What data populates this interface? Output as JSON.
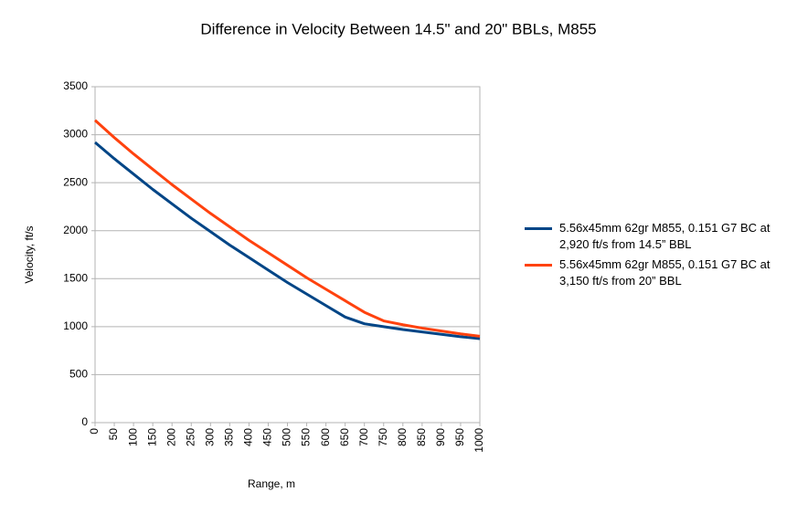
{
  "chart_data": {
    "type": "line",
    "title": "Difference in Velocity Between 14.5\" and 20\" BBLs, M855",
    "x_label": "Range, m",
    "y_label": "Velocity, ft/s",
    "x": [
      0,
      50,
      100,
      150,
      200,
      250,
      300,
      350,
      400,
      450,
      500,
      550,
      600,
      650,
      700,
      750,
      800,
      850,
      900,
      950,
      1000
    ],
    "xlim": [
      0,
      1000
    ],
    "xticks": [
      0,
      50,
      100,
      150,
      200,
      250,
      300,
      350,
      400,
      450,
      500,
      550,
      600,
      650,
      700,
      750,
      800,
      850,
      900,
      950,
      1000
    ],
    "ylim": [
      0,
      3500
    ],
    "yticks": [
      0,
      500,
      1000,
      1500,
      2000,
      2500,
      3000,
      3500
    ],
    "grid": true,
    "legend": "right",
    "series": [
      {
        "name": "5.56x45mm 62gr M855, 0.151 G7 BC at 2,920 ft/s from 14.5” BBL",
        "color": "#004586",
        "values": [
          2920,
          2750,
          2590,
          2430,
          2280,
          2130,
          1990,
          1850,
          1720,
          1590,
          1460,
          1340,
          1220,
          1100,
          1030,
          1000,
          970,
          945,
          920,
          895,
          875
        ]
      },
      {
        "name": "5.56x45mm 62gr M855, 0.151 G7 BC at 3,150 ft/s from 20” BBL",
        "color": "#ff420e",
        "values": [
          3150,
          2970,
          2800,
          2640,
          2480,
          2330,
          2180,
          2040,
          1900,
          1770,
          1640,
          1510,
          1390,
          1270,
          1150,
          1060,
          1020,
          985,
          955,
          925,
          900
        ]
      }
    ]
  }
}
